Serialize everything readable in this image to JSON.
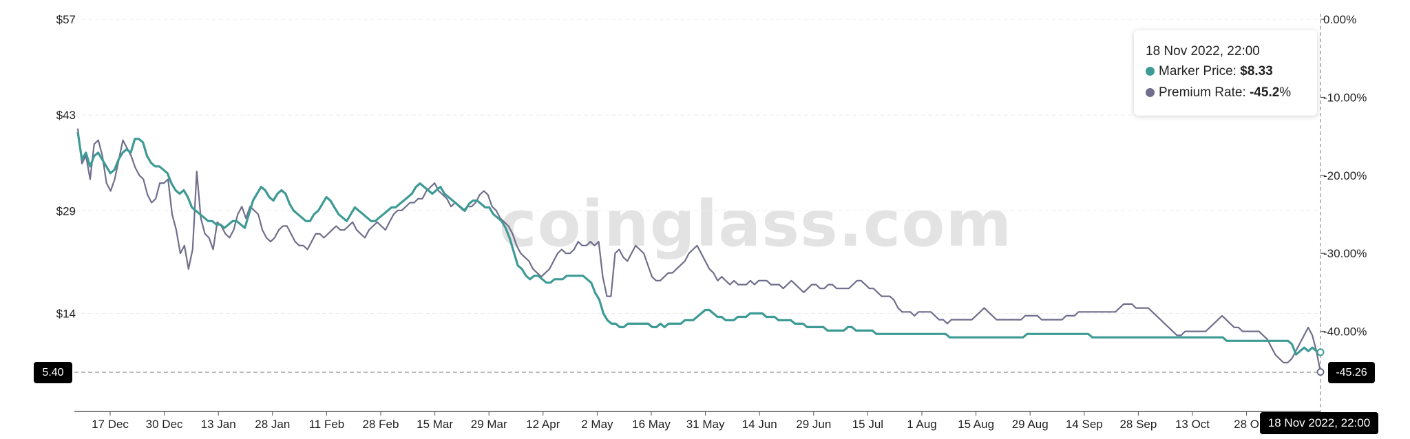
{
  "watermark": "coinglass.com",
  "colors": {
    "price": "#3d9a94",
    "premium": "#6f6e8c"
  },
  "tooltip": {
    "date": "18 Nov 2022, 22:00",
    "price_label": "Marker Price: ",
    "price_value": "$8.33",
    "rate_label": "Premium Rate: ",
    "rate_value": "-45.2",
    "rate_unit": "%"
  },
  "crosshair": {
    "x_label": "18 Nov 2022, 22:00",
    "left_value": "5.40",
    "right_value": "-45.26"
  },
  "chart_data": {
    "type": "line",
    "title": "",
    "left_axis": {
      "ticks": [
        "$57",
        "$43",
        "$29",
        "$14"
      ],
      "tick_values": [
        57,
        43,
        29,
        14
      ],
      "range": [
        0,
        57
      ]
    },
    "right_axis": {
      "ticks": [
        "0.00%",
        "-10.00%",
        "-20.00%",
        "-30.00%",
        "-40.00%"
      ],
      "tick_values": [
        0,
        -10,
        -20,
        -30,
        -40
      ],
      "range": [
        -50,
        0
      ]
    },
    "x_ticks": [
      "17 Dec",
      "30 Dec",
      "13 Jan",
      "28 Jan",
      "11 Feb",
      "28 Feb",
      "15 Mar",
      "29 Mar",
      "12 Apr",
      "2 May",
      "16 May",
      "31 May",
      "14 Jun",
      "29 Jun",
      "15 Jul",
      "1 Aug",
      "15 Aug",
      "29 Aug",
      "14 Sep",
      "28 Sep",
      "13 Oct",
      "28 O"
    ],
    "grid": true,
    "series": [
      {
        "name": "Marker Price",
        "axis": "left",
        "values": [
          40.5,
          36.5,
          37.5,
          35.5,
          37,
          37.5,
          36.5,
          35.5,
          34.5,
          35,
          36.5,
          37.5,
          38,
          37.5,
          39.5,
          39.5,
          39,
          37,
          36,
          35.5,
          35.5,
          35,
          34.5,
          33,
          32,
          31.5,
          32,
          31,
          29.5,
          29,
          28.5,
          28,
          27.5,
          27.5,
          27,
          27,
          26.5,
          27,
          27.5,
          27.5,
          27,
          26.5,
          28.5,
          30.5,
          31.5,
          32.5,
          32,
          31,
          30.5,
          31.5,
          32,
          31.5,
          30,
          29,
          28.5,
          28,
          27.5,
          27.5,
          28.5,
          29,
          30,
          31,
          30.5,
          29.5,
          28.5,
          28,
          27.5,
          28.5,
          29.5,
          29,
          28.5,
          28,
          27.5,
          27.5,
          28,
          28.5,
          29,
          29.5,
          29.5,
          30,
          30.5,
          31,
          31.5,
          32.5,
          33,
          32.5,
          32,
          31.5,
          32,
          32.5,
          31.5,
          31,
          30.5,
          30,
          29.5,
          29,
          30,
          30.5,
          30.5,
          30,
          29.5,
          29.5,
          28.5,
          28,
          27.5,
          26.5,
          25,
          23,
          21,
          20.5,
          19.5,
          19,
          19.5,
          19.5,
          19,
          18.5,
          18.5,
          19,
          19,
          19,
          19.5,
          19.5,
          19.5,
          19.5,
          19.5,
          19,
          18.5,
          17,
          16,
          14,
          13,
          12.5,
          12.5,
          12,
          12,
          12.5,
          12.5,
          12.5,
          12.5,
          12.5,
          12.5,
          12,
          12,
          12.5,
          12,
          12.5,
          12.5,
          12.5,
          12.5,
          13,
          13,
          13,
          13.5,
          14,
          14.5,
          14.5,
          14,
          13.5,
          13.5,
          13,
          13,
          13,
          13.5,
          13.5,
          13.5,
          14,
          14,
          14,
          14,
          13.5,
          13.5,
          13.5,
          13,
          13,
          13,
          13,
          12.5,
          12.5,
          12.5,
          12,
          12,
          12,
          12,
          12,
          11.5,
          11.5,
          11.5,
          11.5,
          11.5,
          12,
          12,
          11.5,
          11.5,
          11.5,
          11.5,
          11.5,
          11,
          11,
          11,
          11,
          11,
          11,
          11,
          11,
          11,
          11,
          11,
          11,
          11,
          11,
          11,
          11,
          11,
          11,
          10.5,
          10.5,
          10.5,
          10.5,
          10.5,
          10.5,
          10.5,
          10.5,
          10.5,
          10.5,
          10.5,
          10.5,
          10.5,
          10.5,
          10.5,
          10.5,
          10.5,
          10.5,
          10.5,
          11,
          11,
          11,
          11,
          11,
          11,
          11,
          11,
          11,
          11,
          11,
          11,
          11,
          11,
          11,
          11,
          10.5,
          10.5,
          10.5,
          10.5,
          10.5,
          10.5,
          10.5,
          10.5,
          10.5,
          10.5,
          10.5,
          10.5,
          10.5,
          10.5,
          10.5,
          10.5,
          10.5,
          10.5,
          10.5,
          10.5,
          10.5,
          10.5,
          10.5,
          10.5,
          10.5,
          10.5,
          10.5,
          10.5,
          10.5,
          10.5,
          10.5,
          10.5,
          10.5,
          10,
          10,
          10,
          10,
          10,
          10,
          10,
          10,
          10,
          10,
          10,
          10,
          10,
          10,
          10,
          10,
          9.5,
          8,
          8.5,
          9,
          8.5,
          9,
          8.5,
          8.33
        ]
      },
      {
        "name": "Premium Rate",
        "axis": "right",
        "values": [
          -14,
          -18.5,
          -17.5,
          -20.5,
          -16,
          -15.5,
          -17.5,
          -21,
          -22,
          -20.5,
          -18,
          -15.5,
          -16.5,
          -17.5,
          -19,
          -20,
          -20.5,
          -22.5,
          -23.5,
          -23,
          -21,
          -21,
          -20.5,
          -25,
          -27,
          -30,
          -29,
          -32,
          -29.5,
          -19.5,
          -25.5,
          -27.5,
          -28,
          -29.5,
          -26,
          -26.5,
          -27.5,
          -28,
          -27,
          -25,
          -24,
          -25.5,
          -24,
          -24.5,
          -25,
          -27,
          -28,
          -28.5,
          -28,
          -27,
          -26.5,
          -26.5,
          -27.5,
          -28.5,
          -29,
          -29,
          -29.5,
          -28.5,
          -27.5,
          -27.5,
          -28,
          -27.5,
          -27,
          -26.5,
          -27,
          -27,
          -26.5,
          -26,
          -27,
          -27.5,
          -28,
          -27,
          -26.5,
          -26,
          -26.5,
          -27,
          -26,
          -25,
          -24.5,
          -24.5,
          -24,
          -23.5,
          -23.5,
          -23,
          -23,
          -22,
          -21.5,
          -21,
          -22,
          -22.5,
          -23,
          -24,
          -23.5,
          -24,
          -24.5,
          -24,
          -24,
          -23.5,
          -22.5,
          -22,
          -22.5,
          -24,
          -24.5,
          -25.5,
          -26,
          -26.5,
          -27.5,
          -29,
          -30,
          -30.5,
          -31,
          -32,
          -32.5,
          -33,
          -32.5,
          -32,
          -31,
          -30,
          -29.5,
          -30,
          -30,
          -29.5,
          -28.5,
          -29,
          -29,
          -28.5,
          -29,
          -28.5,
          -33,
          -35.5,
          -35.5,
          -30,
          -29.5,
          -30.5,
          -31,
          -30,
          -29,
          -29.5,
          -30,
          -31.5,
          -33,
          -33.5,
          -33.5,
          -33,
          -32.5,
          -32.5,
          -32,
          -31.5,
          -31,
          -30,
          -29.5,
          -29,
          -30,
          -31,
          -32,
          -32.5,
          -33.5,
          -33,
          -33.5,
          -34,
          -33.5,
          -34,
          -34,
          -34,
          -33.5,
          -34,
          -33.5,
          -33.5,
          -33.5,
          -34,
          -34,
          -34,
          -34.5,
          -34,
          -33.5,
          -34,
          -34.5,
          -35,
          -34.5,
          -34,
          -34,
          -34.5,
          -34.5,
          -34,
          -34,
          -34.5,
          -34.5,
          -34.5,
          -34.5,
          -34,
          -33.5,
          -33.5,
          -34,
          -34.5,
          -34.5,
          -35,
          -35.5,
          -35.5,
          -35.5,
          -36,
          -37,
          -37.5,
          -37.5,
          -37.5,
          -38,
          -37.5,
          -37.5,
          -37.5,
          -37.5,
          -38,
          -38.5,
          -38.5,
          -39,
          -38.5,
          -38.5,
          -38.5,
          -38.5,
          -38.5,
          -38.5,
          -38,
          -37.5,
          -37,
          -37.5,
          -38,
          -38.5,
          -38.5,
          -38.5,
          -38.5,
          -38.5,
          -38.5,
          -38.5,
          -38,
          -38,
          -38,
          -38,
          -38.5,
          -38.5,
          -38.5,
          -38.5,
          -38.5,
          -38.5,
          -38,
          -38,
          -38,
          -37.5,
          -37.5,
          -37.5,
          -37.5,
          -37.5,
          -37.5,
          -37.5,
          -37.5,
          -37.5,
          -37.5,
          -37,
          -36.5,
          -36.5,
          -36.5,
          -37,
          -37,
          -37,
          -37,
          -37.5,
          -38,
          -38.5,
          -39,
          -39.5,
          -40,
          -40.5,
          -40.5,
          -40,
          -40,
          -40,
          -40,
          -40,
          -40,
          -39.5,
          -39,
          -38.5,
          -38,
          -38.5,
          -39,
          -39.5,
          -39.5,
          -40,
          -40,
          -40,
          -40,
          -40,
          -40.5,
          -41,
          -42,
          -43,
          -43.5,
          -44,
          -44,
          -43.5,
          -42.5,
          -41.5,
          -40.5,
          -39.5,
          -40.5,
          -42.5,
          -45.2
        ]
      }
    ]
  }
}
